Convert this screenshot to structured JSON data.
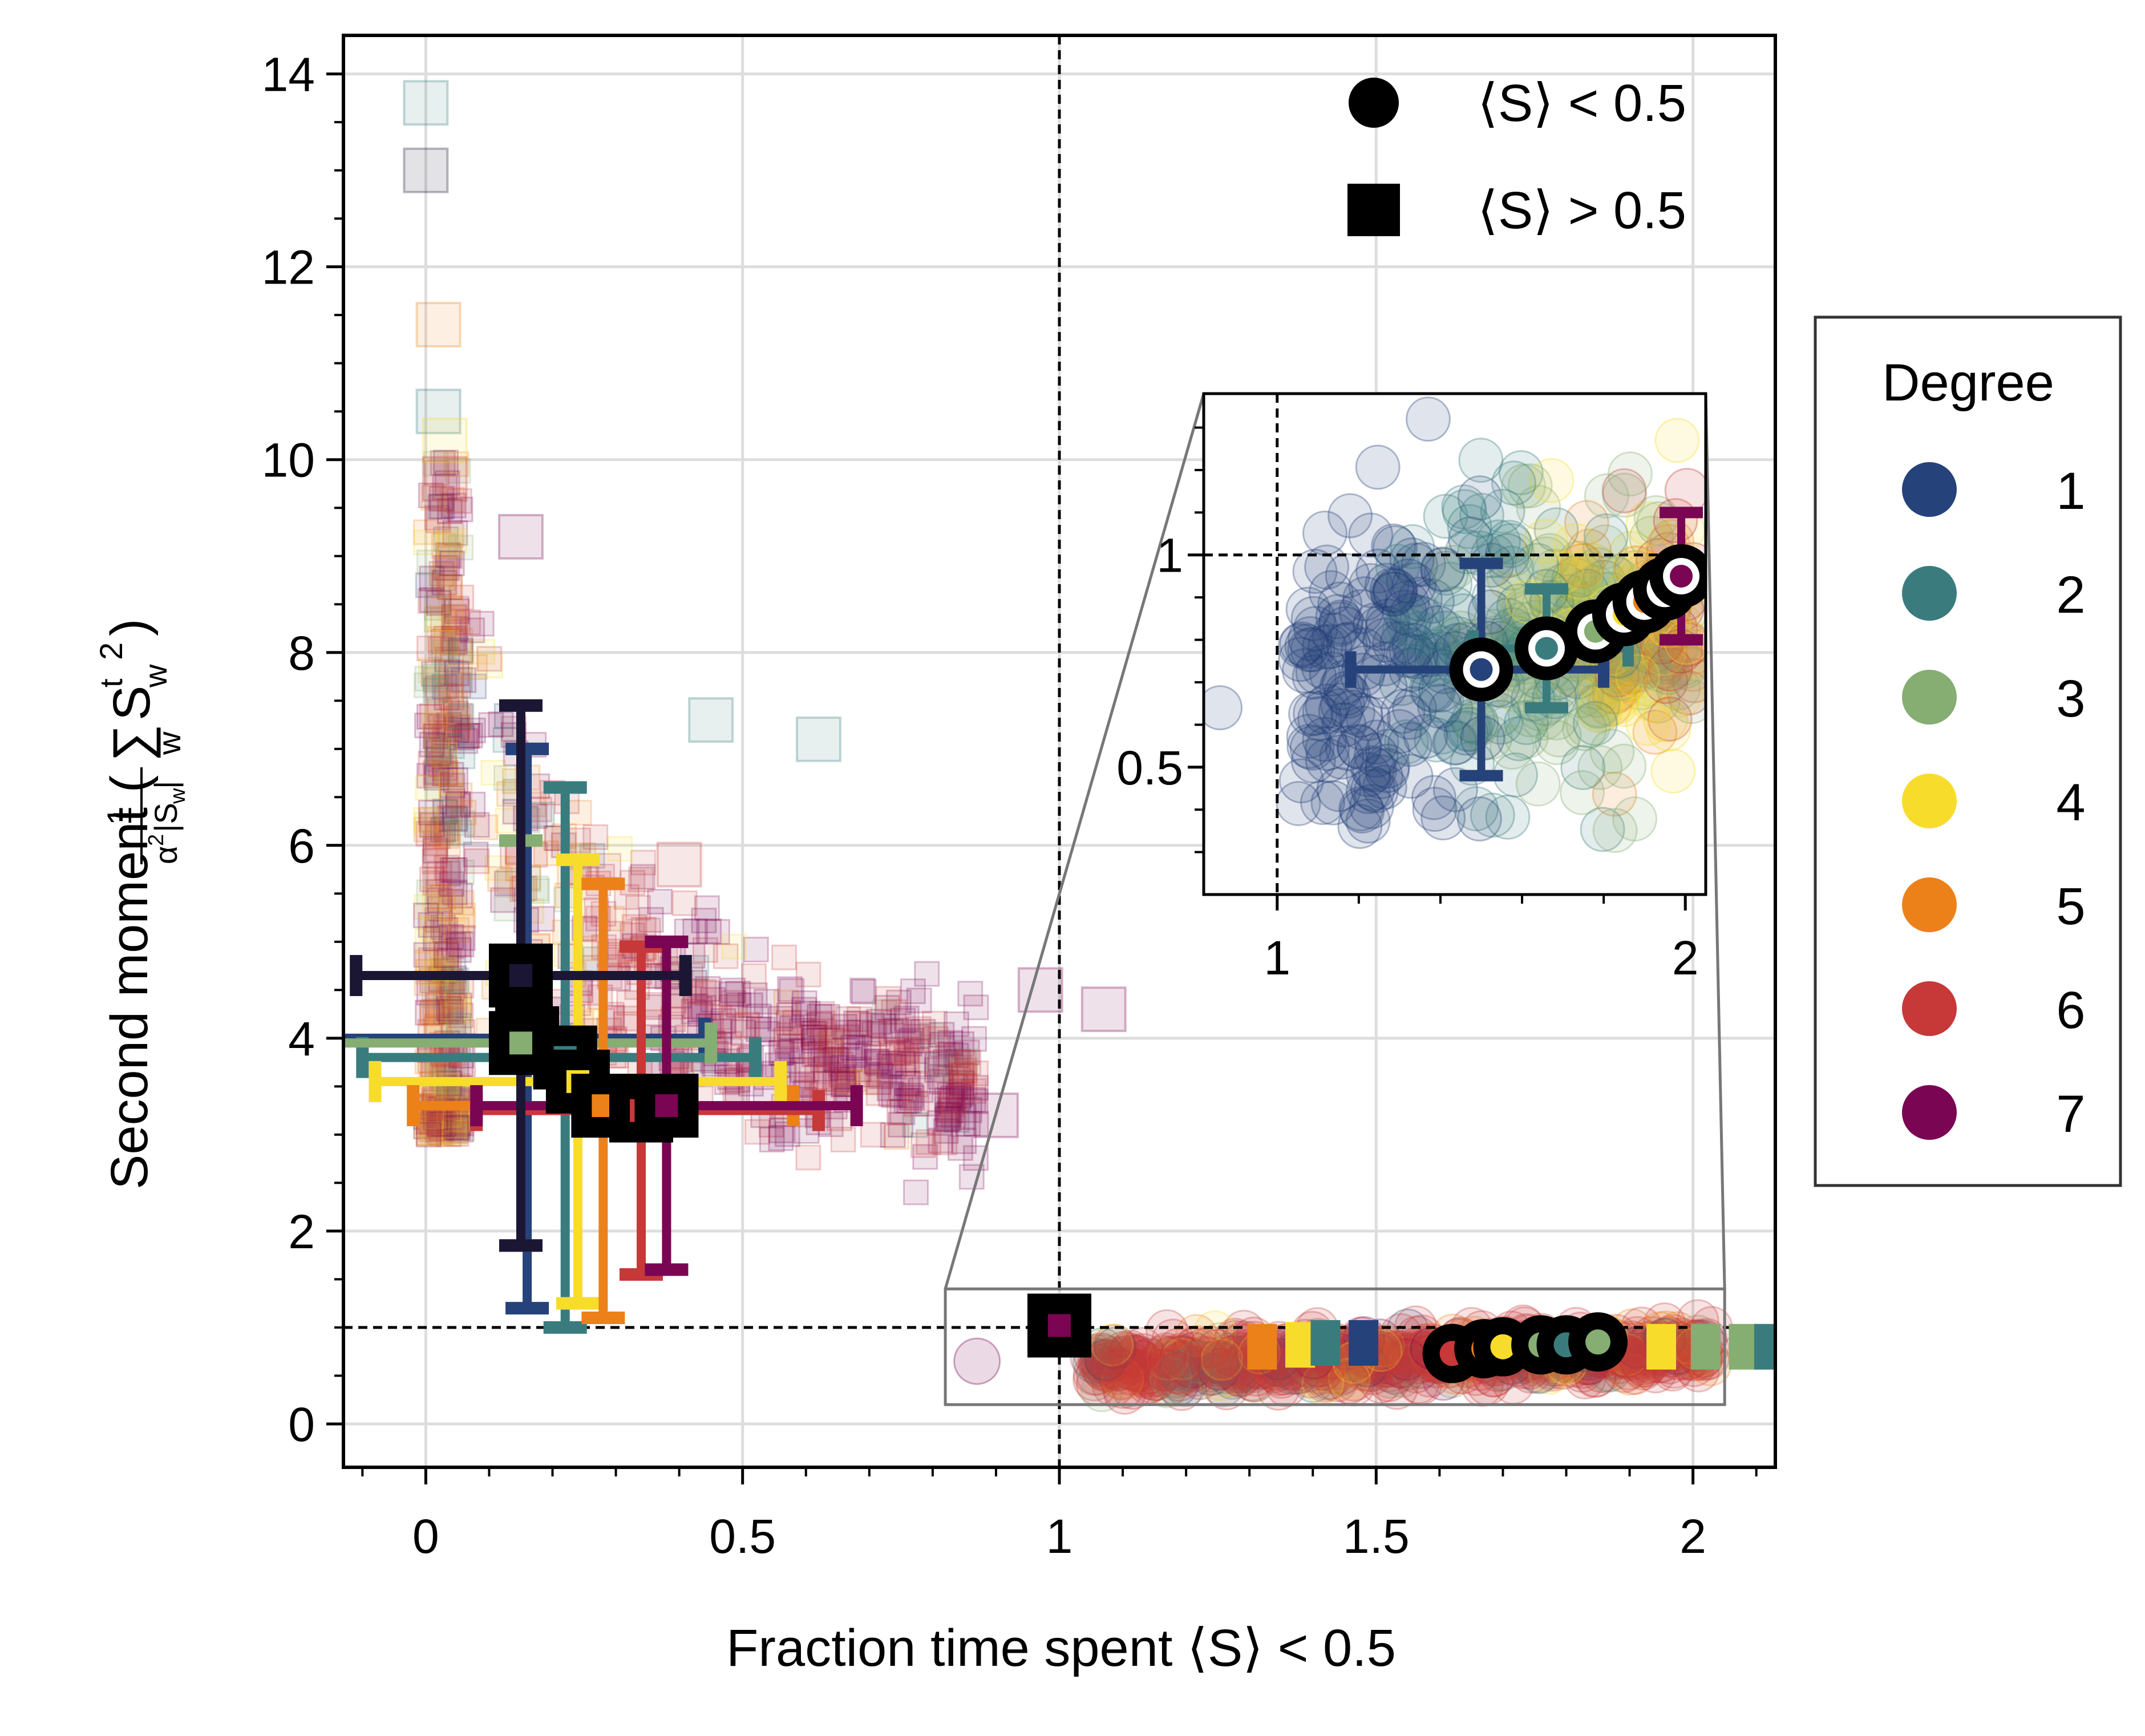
{
  "chart_data": {
    "type": "scatter",
    "xlabel": "Fraction time spent ⟨S⟩ < 0.5",
    "ylabel": "Second moment (",
    "ylabel_math": {
      "frac_num": "1",
      "frac_den_base": "α",
      "frac_den_sup": "2",
      "frac_den_abs_open": "|S",
      "frac_den_abs_sub": "w",
      "frac_den_abs_close": "|",
      "sum": "∑",
      "sum_sub": "w",
      "term": "S",
      "term_sup": "t",
      "term_sub": "w",
      "square": "2",
      "close": ")"
    },
    "xlim": [
      -0.13,
      2.13
    ],
    "ylim": [
      -0.45,
      14.4
    ],
    "x_ticks": [
      {
        "value": 0,
        "label": "0"
      },
      {
        "value": 0.5,
        "label": "0.5"
      },
      {
        "value": 1,
        "label": "1"
      },
      {
        "value": 1.5,
        "label": "1.5"
      },
      {
        "value": 2,
        "label": "2"
      }
    ],
    "y_ticks": [
      {
        "value": 0,
        "label": "0"
      },
      {
        "value": 2,
        "label": "2"
      },
      {
        "value": 4,
        "label": "4"
      },
      {
        "value": 6,
        "label": "6"
      },
      {
        "value": 8,
        "label": "8"
      },
      {
        "value": 10,
        "label": "10"
      },
      {
        "value": 12,
        "label": "12"
      },
      {
        "value": 14,
        "label": "14"
      }
    ],
    "grid": true,
    "reference_lines": {
      "x": 1,
      "y": 1
    },
    "marker_legend": {
      "placement": "upper-right",
      "entries": [
        {
          "marker": "circle",
          "label": "⟨S⟩ < 0.5"
        },
        {
          "marker": "square",
          "label": "⟨S⟩ > 0.5"
        }
      ]
    },
    "degree_legend": {
      "title": "Degree",
      "placement": "outside-right",
      "entries": [
        {
          "label": "1",
          "color": "#26427a"
        },
        {
          "label": "2",
          "color": "#3a7c7d"
        },
        {
          "label": "3",
          "color": "#86ad72"
        },
        {
          "label": "4",
          "color": "#f7dc2c"
        },
        {
          "label": "5",
          "color": "#ec8119"
        },
        {
          "label": "6",
          "color": "#c73838"
        },
        {
          "label": "7",
          "color": "#7a0553"
        }
      ]
    },
    "series_means_square": [
      {
        "degree": "1",
        "x": 0.16,
        "y": 4.0,
        "xerr": [
          0.3,
          0.28
        ],
        "yerr": [
          2.8,
          3.0
        ]
      },
      {
        "degree": "2",
        "x": 0.22,
        "y": 3.8,
        "xerr": [
          0.32,
          0.3
        ],
        "yerr": [
          2.8,
          2.8
        ]
      },
      {
        "degree": "3",
        "x": 0.15,
        "y": 3.95,
        "xerr": [
          0.32,
          0.3
        ],
        "yerr": [
          2.1,
          2.1
        ]
      },
      {
        "degree": "4",
        "x": 0.24,
        "y": 3.55,
        "xerr": [
          0.32,
          0.32
        ],
        "yerr": [
          2.3,
          2.3
        ]
      },
      {
        "degree": "5",
        "x": 0.28,
        "y": 3.3,
        "xerr": [
          0.3,
          0.3
        ],
        "yerr": [
          2.2,
          2.3
        ]
      },
      {
        "degree": "6",
        "x": 0.34,
        "y": 3.25,
        "xerr": [
          0.26,
          0.28
        ],
        "yerr": [
          1.7,
          1.7
        ]
      },
      {
        "degree": "7",
        "x": 0.38,
        "y": 3.3,
        "xerr": [
          0.3,
          0.3
        ],
        "yerr": [
          1.7,
          1.7
        ]
      },
      {
        "degree": "0",
        "x": 0.15,
        "y": 4.65,
        "xerr": [
          0.26,
          0.26
        ],
        "yerr": [
          2.8,
          2.8
        ]
      },
      {
        "degree": "7",
        "x": 1.0,
        "y": 1.02,
        "xerr": [
          0,
          0
        ],
        "yerr": [
          0,
          0
        ]
      }
    ],
    "series_means_circle": [
      {
        "degree": "6",
        "x": 1.62,
        "y": 0.73
      },
      {
        "degree": "5",
        "x": 1.67,
        "y": 0.78
      },
      {
        "degree": "4",
        "x": 1.7,
        "y": 0.8
      },
      {
        "degree": "3",
        "x": 1.76,
        "y": 0.82
      },
      {
        "degree": "2",
        "x": 1.8,
        "y": 0.82
      },
      {
        "degree": "3",
        "x": 1.85,
        "y": 0.85
      }
    ],
    "inset": {
      "xlim": [
        0.82,
        2.05
      ],
      "ylim": [
        0.2,
        1.38
      ],
      "x_ticks": [
        {
          "value": 1,
          "label": "1"
        },
        {
          "value": 2,
          "label": "2"
        }
      ],
      "y_ticks": [
        {
          "value": 0.5,
          "label": "0.5"
        },
        {
          "value": 1,
          "label": "1"
        }
      ],
      "zoom_region": {
        "x": [
          0.82,
          2.05
        ],
        "y": [
          0.2,
          1.4
        ]
      },
      "means": [
        {
          "degree": "1",
          "x": 1.5,
          "y": 0.73,
          "xerr": [
            0.32,
            0.3
          ],
          "yerr": [
            0.25,
            0.25
          ]
        },
        {
          "degree": "2",
          "x": 1.66,
          "y": 0.78,
          "xerr": [
            0.18,
            0.2
          ],
          "yerr": [
            0.14,
            0.14
          ]
        },
        {
          "degree": "3",
          "x": 1.78,
          "y": 0.82
        },
        {
          "degree": "4",
          "x": 1.85,
          "y": 0.86
        },
        {
          "degree": "5",
          "x": 1.9,
          "y": 0.89
        },
        {
          "degree": "6",
          "x": 1.95,
          "y": 0.92
        },
        {
          "degree": "7",
          "x": 1.99,
          "y": 0.95,
          "xerr": [
            0,
            0
          ],
          "yerr": [
            0.15,
            0.15
          ]
        }
      ]
    }
  }
}
